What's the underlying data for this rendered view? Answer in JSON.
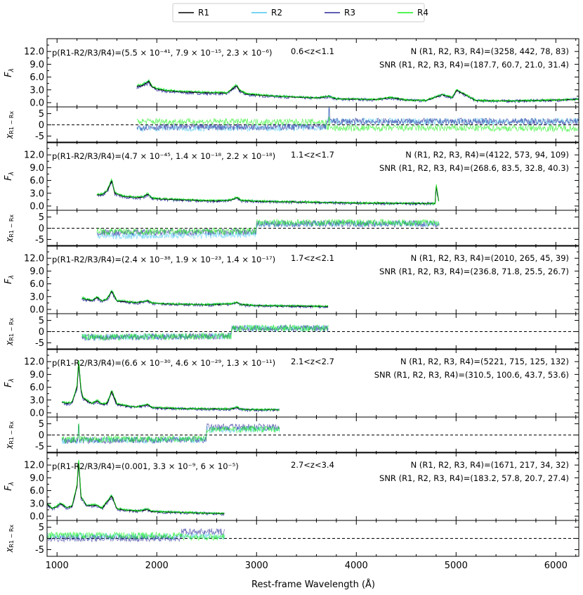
{
  "legend": {
    "placement": "top-center",
    "entries": [
      {
        "name": "R1",
        "color": "#000000"
      },
      {
        "name": "R2",
        "color": "#48c6ee"
      },
      {
        "name": "R3",
        "color": "#2a2a9a"
      },
      {
        "name": "R4",
        "color": "#19f019"
      }
    ]
  },
  "xlabel": "Rest-frame Wavelength (Å)",
  "ylabel_flux": "F_λ",
  "ylabel_resid": "χ_R1 − Rx",
  "chart_data": {
    "type": "line",
    "xlim": [
      900,
      6230
    ],
    "x_ticks": [
      1000,
      2000,
      3000,
      4000,
      5000,
      6000
    ],
    "flux_ylim": [
      -1,
      15
    ],
    "flux_ticks": [
      "0.0",
      "3.0",
      "6.0",
      "9.0",
      "12.0"
    ],
    "resid_ylim": [
      -8,
      8
    ],
    "resid_ticks": [
      "-5",
      "0",
      "5"
    ],
    "panels": [
      {
        "pvalue_text": "p(R1-R2/R3/R4)=(5.5 × 10⁻⁴¹, 7.9 × 10⁻¹⁵, 2.3 × 10⁻⁶)",
        "z_text": "0.6<z<1.1",
        "n_text": "N (R1, R2, R3, R4)=(3258, 442, 78, 83)",
        "snr_text": "SNR (R1, R2, R3, R4)=(187.7, 60.7, 21.0, 31.4)",
        "wave_range": [
          1800,
          6230
        ],
        "flux_wave": [
          1800,
          1850,
          1900,
          1920,
          1950,
          2000,
          2100,
          2200,
          2300,
          2400,
          2500,
          2600,
          2700,
          2780,
          2800,
          2830,
          2900,
          3000,
          3200,
          3400,
          3600,
          3727,
          3800,
          4000,
          4200,
          4340,
          4500,
          4700,
          4861,
          4959,
          5007,
          5200,
          5400,
          5600,
          5800,
          6000,
          6230
        ],
        "flux_values": [
          3.8,
          4.0,
          4.7,
          5.0,
          3.8,
          3.2,
          2.8,
          2.6,
          2.5,
          2.4,
          2.3,
          2.3,
          2.2,
          3.6,
          4.0,
          2.8,
          2.0,
          1.8,
          1.5,
          1.3,
          1.1,
          1.5,
          0.9,
          0.8,
          0.7,
          1.2,
          0.6,
          0.5,
          1.9,
          1.2,
          2.9,
          0.5,
          0.4,
          0.4,
          0.5,
          0.6,
          0.8
        ],
        "resid_break": 3700,
        "resid_offsets": {
          "R2": [
            -1.5,
            1.5
          ],
          "R3": [
            -1.0,
            1.5
          ],
          "R4": [
            1.5,
            -1.5
          ]
        },
        "resid_spike": 3727
      },
      {
        "pvalue_text": "p(R1-R2/R3/R4)=(4.7 × 10⁻⁴⁵, 1.4 × 10⁻¹⁸, 2.2 × 10⁻¹⁸)",
        "z_text": "1.1<z<1.7",
        "n_text": "N (R1, R2, R3, R4)=(4122, 573, 94, 109)",
        "snr_text": "SNR (R1, R2, R3, R4)=(268.6, 83.5, 32.8, 40.3)",
        "wave_range": [
          1400,
          4830
        ],
        "flux_wave": [
          1400,
          1450,
          1500,
          1549,
          1580,
          1650,
          1700,
          1800,
          1860,
          1909,
          1950,
          2000,
          2200,
          2400,
          2600,
          2750,
          2800,
          2850,
          3000,
          3500,
          4000,
          4500,
          4790,
          4800,
          4830
        ],
        "flux_values": [
          2.6,
          2.7,
          3.5,
          6.0,
          3.0,
          2.4,
          2.2,
          2.0,
          2.1,
          2.8,
          1.9,
          1.7,
          1.5,
          1.3,
          1.2,
          1.4,
          2.0,
          1.3,
          1.1,
          0.9,
          0.7,
          0.6,
          0.6,
          5.0,
          0.5
        ],
        "resid_break": 3000,
        "resid_offsets": {
          "R2": [
            -3.5,
            2.0
          ],
          "R3": [
            -2.0,
            2.0
          ],
          "R4": [
            -1.5,
            2.5
          ]
        },
        "resid_spike": null
      },
      {
        "pvalue_text": "p(R1-R2/R3/R4)=(2.4 × 10⁻³⁸, 1.9 × 10⁻²³, 1.4 × 10⁻¹⁷)",
        "z_text": "1.7<z<2.1",
        "n_text": "N (R1, R2, R3, R4)=(2010, 265, 45, 39)",
        "snr_text": "SNR (R1, R2, R3, R4)=(236.8, 71.8, 25.5, 26.7)",
        "wave_range": [
          1250,
          3720
        ],
        "flux_wave": [
          1250,
          1300,
          1350,
          1400,
          1450,
          1500,
          1549,
          1600,
          1700,
          1800,
          1909,
          1950,
          2100,
          2300,
          2500,
          2750,
          2800,
          2850,
          3000,
          3300,
          3720
        ],
        "flux_values": [
          2.6,
          2.3,
          2.1,
          2.8,
          2.0,
          2.4,
          4.3,
          2.0,
          1.8,
          1.6,
          2.0,
          1.5,
          1.3,
          1.2,
          1.1,
          1.3,
          1.6,
          1.1,
          0.9,
          0.8,
          0.7
        ],
        "resid_break": 2750,
        "resid_offsets": {
          "R2": [
            -2.5,
            1.5
          ],
          "R3": [
            -2.5,
            1.5
          ],
          "R4": [
            -2.5,
            1.5
          ]
        },
        "resid_spike": null
      },
      {
        "pvalue_text": "p(R1-R2/R3/R4)=(6.6 × 10⁻³⁰, 4.6 × 10⁻²⁹, 1.3 × 10⁻¹¹)",
        "z_text": "2.1<z<2.7",
        "n_text": "N (R1, R2, R3, R4)=(5221, 715, 125, 132)",
        "snr_text": "SNR (R1, R2, R3, R4)=(310.5, 100.6, 43.7, 53.6)",
        "wave_range": [
          1050,
          3230
        ],
        "flux_wave": [
          1050,
          1100,
          1150,
          1200,
          1216,
          1240,
          1260,
          1300,
          1350,
          1400,
          1450,
          1500,
          1549,
          1600,
          1700,
          1800,
          1909,
          1950,
          2200,
          2500,
          2750,
          2800,
          2850,
          3000,
          3230
        ],
        "flux_values": [
          2.5,
          2.2,
          2.4,
          6.0,
          12.0,
          5.5,
          3.5,
          2.8,
          2.2,
          2.8,
          2.0,
          2.2,
          5.0,
          2.0,
          1.6,
          1.4,
          1.9,
          1.2,
          1.0,
          0.9,
          0.9,
          1.3,
          0.8,
          0.7,
          0.7
        ],
        "resid_break": 2500,
        "resid_offsets": {
          "R2": [
            -2.5,
            2.5
          ],
          "R3": [
            -2.5,
            3.5
          ],
          "R4": [
            -2.0,
            2.5
          ]
        },
        "resid_spike": 1216
      },
      {
        "pvalue_text": "p(R1-R2/R3/R4)=(0.001, 3.3 × 10⁻⁹, 6 × 10⁻⁵)",
        "z_text": "2.7<z<3.4",
        "n_text": "N (R1, R2, R3, R4)=(1671, 217, 34, 32)",
        "snr_text": "SNR (R1, R2, R3, R4)=(183.2, 57.8, 20.7, 27.4)",
        "wave_range": [
          900,
          2680
        ],
        "flux_wave": [
          900,
          950,
          1000,
          1030,
          1100,
          1150,
          1200,
          1216,
          1240,
          1300,
          1400,
          1450,
          1549,
          1600,
          1700,
          1800,
          1909,
          1950,
          2200,
          2500,
          2680
        ],
        "flux_values": [
          2.8,
          1.8,
          2.3,
          3.0,
          2.0,
          2.3,
          7.0,
          13.2,
          4.5,
          2.5,
          2.6,
          1.8,
          4.8,
          1.7,
          1.4,
          1.2,
          1.6,
          1.1,
          0.9,
          0.7,
          0.6
        ],
        "resid_break": 2250,
        "resid_offsets": {
          "R2": [
            1.0,
            1.0
          ],
          "R3": [
            0.0,
            3.0
          ],
          "R4": [
            1.5,
            0.5
          ]
        },
        "resid_spike": null
      }
    ]
  }
}
